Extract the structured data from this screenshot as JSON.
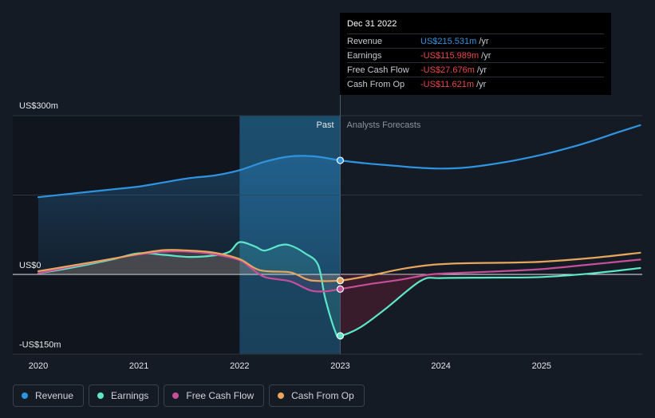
{
  "chart_data": {
    "type": "line",
    "y_tick_labels": [
      "US$300m",
      "US$0",
      "-US$150m"
    ],
    "ylim": [
      -150,
      300
    ],
    "x_ticks": [
      {
        "label": "2020",
        "x": 2020
      },
      {
        "label": "2021",
        "x": 2021
      },
      {
        "label": "2022",
        "x": 2022
      },
      {
        "label": "2023",
        "x": 2023
      },
      {
        "label": "2024",
        "x": 2024
      },
      {
        "label": "2025",
        "x": 2025
      }
    ],
    "xlim": [
      2019.75,
      2025.98
    ],
    "divider_x": 2023,
    "shade_start_x": 2022,
    "past_label": "Past",
    "forecast_label": "Analysts Forecasts",
    "grid": true,
    "series": [
      {
        "name": "Revenue",
        "color": "#2f94e0",
        "points": [
          [
            2020,
            146
          ],
          [
            2020.25,
            151
          ],
          [
            2020.5,
            156
          ],
          [
            2020.75,
            161
          ],
          [
            2021,
            166
          ],
          [
            2021.25,
            174
          ],
          [
            2021.5,
            182
          ],
          [
            2021.75,
            187
          ],
          [
            2022,
            197
          ],
          [
            2022.25,
            213
          ],
          [
            2022.5,
            223
          ],
          [
            2022.75,
            223
          ],
          [
            2023,
            215.5
          ],
          [
            2023.25,
            210
          ],
          [
            2023.5,
            206
          ],
          [
            2023.75,
            202
          ],
          [
            2024,
            200
          ],
          [
            2024.25,
            202
          ],
          [
            2024.5,
            208
          ],
          [
            2024.75,
            216
          ],
          [
            2025,
            226
          ],
          [
            2025.25,
            238
          ],
          [
            2025.5,
            252
          ],
          [
            2025.75,
            268
          ],
          [
            2025.98,
            282
          ]
        ]
      },
      {
        "name": "Earnings",
        "color": "#5ee6c9",
        "points": [
          [
            2020,
            2
          ],
          [
            2020.25,
            10
          ],
          [
            2020.5,
            19
          ],
          [
            2020.75,
            29
          ],
          [
            2021,
            40
          ],
          [
            2021.25,
            37
          ],
          [
            2021.5,
            33
          ],
          [
            2021.75,
            36
          ],
          [
            2021.9,
            43
          ],
          [
            2022,
            61
          ],
          [
            2022.15,
            53
          ],
          [
            2022.25,
            45
          ],
          [
            2022.4,
            55
          ],
          [
            2022.5,
            55
          ],
          [
            2022.65,
            40
          ],
          [
            2022.78,
            18
          ],
          [
            2022.85,
            -45
          ],
          [
            2022.95,
            -108
          ],
          [
            2023,
            -116
          ],
          [
            2023.2,
            -100
          ],
          [
            2023.45,
            -65
          ],
          [
            2023.8,
            -12
          ],
          [
            2024,
            -7
          ],
          [
            2024.5,
            -6
          ],
          [
            2025,
            -5
          ],
          [
            2025.5,
            2
          ],
          [
            2025.98,
            12
          ]
        ]
      },
      {
        "name": "Free Cash Flow",
        "color": "#c64f9a",
        "points": [
          [
            2020,
            2
          ],
          [
            2020.25,
            12
          ],
          [
            2020.5,
            21
          ],
          [
            2020.75,
            30
          ],
          [
            2021,
            38
          ],
          [
            2021.25,
            43
          ],
          [
            2021.5,
            43
          ],
          [
            2021.75,
            38
          ],
          [
            2022,
            27
          ],
          [
            2022.1,
            14
          ],
          [
            2022.25,
            -5
          ],
          [
            2022.5,
            -13
          ],
          [
            2022.7,
            -30
          ],
          [
            2022.85,
            -32
          ],
          [
            2023,
            -27.7
          ],
          [
            2023.3,
            -18
          ],
          [
            2023.6,
            -10
          ],
          [
            2023.9,
            0
          ],
          [
            2024.2,
            3
          ],
          [
            2024.6,
            6
          ],
          [
            2025,
            10
          ],
          [
            2025.5,
            19
          ],
          [
            2025.98,
            28
          ]
        ]
      },
      {
        "name": "Cash From Op",
        "color": "#e7a65e",
        "points": [
          [
            2020,
            6
          ],
          [
            2020.25,
            14
          ],
          [
            2020.5,
            22
          ],
          [
            2020.75,
            30
          ],
          [
            2021,
            39
          ],
          [
            2021.25,
            46
          ],
          [
            2021.5,
            45
          ],
          [
            2021.75,
            41
          ],
          [
            2022,
            29
          ],
          [
            2022.2,
            8
          ],
          [
            2022.5,
            4
          ],
          [
            2022.65,
            -8
          ],
          [
            2022.75,
            -12
          ],
          [
            2023,
            -11.6
          ],
          [
            2023.3,
            -2
          ],
          [
            2023.6,
            10
          ],
          [
            2023.9,
            18
          ],
          [
            2024.2,
            21
          ],
          [
            2024.6,
            22
          ],
          [
            2025,
            24
          ],
          [
            2025.5,
            31
          ],
          [
            2025.98,
            41
          ]
        ]
      }
    ],
    "highlight_x": 2023
  },
  "tooltip": {
    "date": "Dec 31 2022",
    "rows": [
      {
        "label": "Revenue",
        "value": "US$215.531m",
        "unit": "/yr",
        "color": "#2f94e0"
      },
      {
        "label": "Earnings",
        "value": "-US$115.989m",
        "unit": "/yr",
        "color": "#ea4b4b"
      },
      {
        "label": "Free Cash Flow",
        "value": "-US$27.676m",
        "unit": "/yr",
        "color": "#ea4b4b"
      },
      {
        "label": "Cash From Op",
        "value": "-US$11.621m",
        "unit": "/yr",
        "color": "#ea4b4b"
      }
    ]
  },
  "legend": [
    {
      "label": "Revenue",
      "color": "#2f94e0"
    },
    {
      "label": "Earnings",
      "color": "#5ee6c9"
    },
    {
      "label": "Free Cash Flow",
      "color": "#c64f9a"
    },
    {
      "label": "Cash From Op",
      "color": "#e7a65e"
    }
  ]
}
